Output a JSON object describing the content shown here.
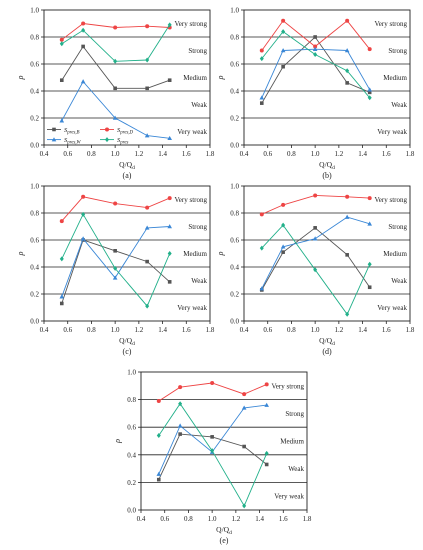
{
  "figure": {
    "legend": [
      {
        "label": "S",
        "sub": "pres,B",
        "color": "#555555",
        "marker": "square"
      },
      {
        "label": "S",
        "sub": "pres,D",
        "color": "#ee4444",
        "marker": "circle"
      },
      {
        "label": "S",
        "sub": "pres,W",
        "color": "#3a87d6",
        "marker": "triangle"
      },
      {
        "label": "S",
        "sub": "pres",
        "color": "#22b08a",
        "marker": "diamond"
      }
    ]
  },
  "chart_data": [
    {
      "panel_label": "(a)",
      "type": "line",
      "xlabel": "Q/Q",
      "xlabel_sub": "d",
      "ylabel": "ρ",
      "xlim": [
        0.4,
        1.8
      ],
      "ylim": [
        0.0,
        1.0
      ],
      "x_ticks": [
        "0.4",
        "0.6",
        "0.8",
        "1.0",
        "1.2",
        "1.4",
        "1.6",
        "1.8"
      ],
      "y_ticks": [
        "0.0",
        "0.2",
        "0.4",
        "0.6",
        "0.8",
        "1.0"
      ],
      "zones": [
        "Very strong",
        "Strong",
        "Medium",
        "Weak",
        "Very weak"
      ],
      "x": [
        0.55,
        0.73,
        1.0,
        1.27,
        1.46
      ],
      "series": [
        {
          "name": "S_pres,B",
          "values": [
            0.48,
            0.73,
            0.42,
            0.42,
            0.48
          ]
        },
        {
          "name": "S_pres,D",
          "values": [
            0.78,
            0.9,
            0.87,
            0.88,
            0.87
          ]
        },
        {
          "name": "S_pres,W",
          "values": [
            0.18,
            0.47,
            0.2,
            0.07,
            0.05
          ]
        },
        {
          "name": "S_pres",
          "values": [
            0.75,
            0.85,
            0.62,
            0.63,
            0.89
          ]
        }
      ]
    },
    {
      "panel_label": "(b)",
      "type": "line",
      "xlabel": "Q/Q",
      "xlabel_sub": "d",
      "ylabel": "ρ",
      "xlim": [
        0.4,
        1.8
      ],
      "ylim": [
        0.0,
        1.0
      ],
      "x_ticks": [
        "0.4",
        "0.6",
        "0.8",
        "1.0",
        "1.2",
        "1.4",
        "1.6",
        "1.8"
      ],
      "y_ticks": [
        "0.0",
        "0.2",
        "0.4",
        "0.6",
        "0.8",
        "1.0"
      ],
      "zones": [
        "Very strong",
        "Strong",
        "Medium",
        "Weak",
        "Very weak"
      ],
      "x": [
        0.55,
        0.73,
        1.0,
        1.27,
        1.46
      ],
      "series": [
        {
          "name": "S_pres,B",
          "values": [
            0.31,
            0.58,
            0.8,
            0.46,
            0.39
          ]
        },
        {
          "name": "S_pres,D",
          "values": [
            0.7,
            0.92,
            0.73,
            0.92,
            0.71
          ]
        },
        {
          "name": "S_pres,W",
          "values": [
            0.35,
            0.7,
            0.71,
            0.7,
            0.41
          ]
        },
        {
          "name": "S_pres",
          "values": [
            0.64,
            0.84,
            0.67,
            0.55,
            0.35
          ]
        }
      ]
    },
    {
      "panel_label": "(c)",
      "type": "line",
      "xlabel": "Q/Q",
      "xlabel_sub": "d",
      "ylabel": "ρ",
      "xlim": [
        0.4,
        1.8
      ],
      "ylim": [
        0.0,
        1.0
      ],
      "x_ticks": [
        "0.4",
        "0.6",
        "0.8",
        "1.0",
        "1.2",
        "1.4",
        "1.6",
        "1.8"
      ],
      "y_ticks": [
        "0.0",
        "0.2",
        "0.4",
        "0.6",
        "0.8",
        "1.0"
      ],
      "zones": [
        "Very strong",
        "Strong",
        "Medium",
        "Weak",
        "Very weak"
      ],
      "x": [
        0.55,
        0.73,
        1.0,
        1.27,
        1.46
      ],
      "series": [
        {
          "name": "S_pres,B",
          "values": [
            0.13,
            0.6,
            0.52,
            0.44,
            0.29
          ]
        },
        {
          "name": "S_pres,D",
          "values": [
            0.74,
            0.92,
            0.87,
            0.84,
            0.91
          ]
        },
        {
          "name": "S_pres,W",
          "values": [
            0.18,
            0.61,
            0.32,
            0.69,
            0.7
          ]
        },
        {
          "name": "S_pres",
          "values": [
            0.46,
            0.79,
            0.39,
            0.11,
            0.5
          ]
        }
      ]
    },
    {
      "panel_label": "(d)",
      "type": "line",
      "xlabel": "Q/Q",
      "xlabel_sub": "d",
      "ylabel": "ρ",
      "xlim": [
        0.4,
        1.8
      ],
      "ylim": [
        0.0,
        1.0
      ],
      "x_ticks": [
        "0.4",
        "0.6",
        "0.8",
        "1.0",
        "1.2",
        "1.4",
        "1.6",
        "1.8"
      ],
      "y_ticks": [
        "0.0",
        "0.2",
        "0.4",
        "0.6",
        "0.8",
        "1.0"
      ],
      "zones": [
        "Very strong",
        "Strong",
        "Medium",
        "Weak",
        "Very weak"
      ],
      "x": [
        0.55,
        0.73,
        1.0,
        1.27,
        1.46
      ],
      "series": [
        {
          "name": "S_pres,B",
          "values": [
            0.23,
            0.51,
            0.69,
            0.49,
            0.25
          ]
        },
        {
          "name": "S_pres,D",
          "values": [
            0.79,
            0.86,
            0.93,
            0.92,
            0.91
          ]
        },
        {
          "name": "S_pres,W",
          "values": [
            0.24,
            0.55,
            0.61,
            0.77,
            0.72
          ]
        },
        {
          "name": "S_pres",
          "values": [
            0.54,
            0.71,
            0.38,
            0.05,
            0.42
          ]
        }
      ]
    },
    {
      "panel_label": "(e)",
      "type": "line",
      "xlabel": "Q/Q",
      "xlabel_sub": "d",
      "ylabel": "ρ",
      "xlim": [
        0.4,
        1.8
      ],
      "ylim": [
        0.0,
        1.0
      ],
      "x_ticks": [
        "0.4",
        "0.6",
        "0.8",
        "1.0",
        "1.2",
        "1.4",
        "1.6",
        "1.8"
      ],
      "y_ticks": [
        "0.0",
        "0.2",
        "0.4",
        "0.6",
        "0.8",
        "1.0"
      ],
      "zones": [
        "Very strong",
        "Strong",
        "Medium",
        "Weak",
        "Very weak"
      ],
      "x": [
        0.55,
        0.73,
        1.0,
        1.27,
        1.46
      ],
      "series": [
        {
          "name": "S_pres,B",
          "values": [
            0.22,
            0.55,
            0.53,
            0.46,
            0.33
          ]
        },
        {
          "name": "S_pres,D",
          "values": [
            0.79,
            0.89,
            0.92,
            0.84,
            0.91
          ]
        },
        {
          "name": "S_pres,W",
          "values": [
            0.26,
            0.61,
            0.42,
            0.74,
            0.76
          ]
        },
        {
          "name": "S_pres",
          "values": [
            0.54,
            0.77,
            0.43,
            0.03,
            0.41
          ]
        }
      ]
    }
  ]
}
